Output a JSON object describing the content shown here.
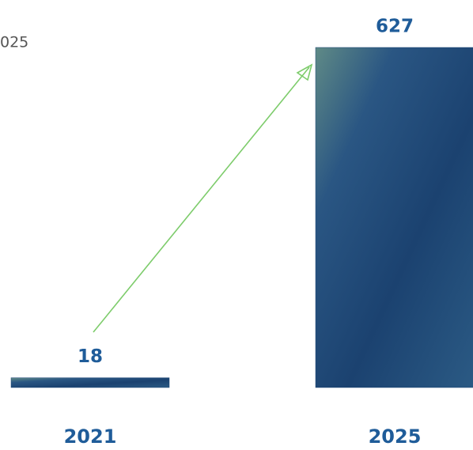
{
  "chart_data": {
    "type": "bar",
    "subtitle": "025",
    "categories": [
      "2021",
      "2025"
    ],
    "values": [
      18,
      627
    ],
    "color": "#1d4675"
  }
}
